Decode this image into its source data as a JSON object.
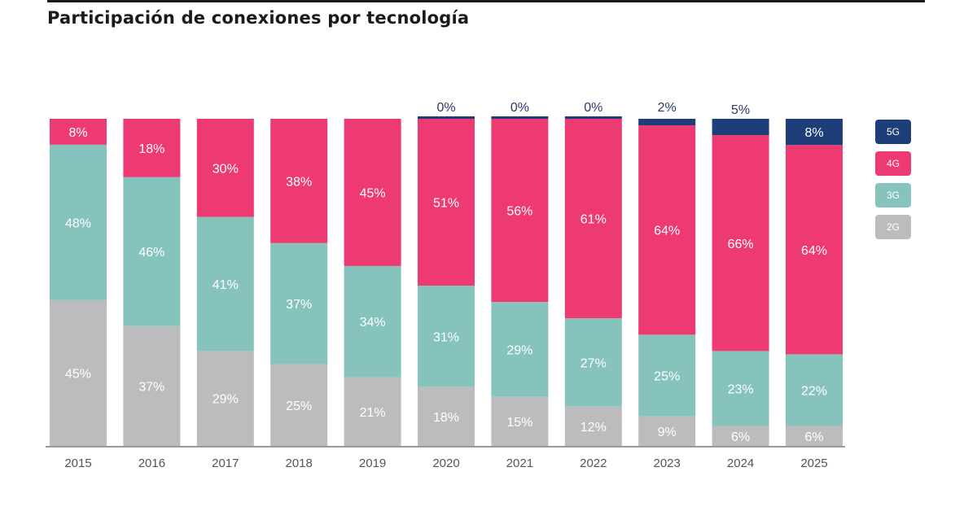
{
  "title": "Participación de conexiones por tecnología",
  "colors": {
    "5G": "#1d3e78",
    "4G": "#ee3a72",
    "3G": "#86c3bd",
    "2G": "#bcbcbe"
  },
  "chart_data": {
    "type": "bar",
    "stacked": true,
    "title": "Participación de conexiones por tecnología",
    "xlabel": "",
    "ylabel": "",
    "ylim": [
      0,
      100
    ],
    "legend_position": "right",
    "grid": false,
    "categories": [
      "2015",
      "2016",
      "2017",
      "2018",
      "2019",
      "2020",
      "2021",
      "2022",
      "2023",
      "2024",
      "2025"
    ],
    "series": [
      {
        "name": "2G",
        "values": [
          45,
          37,
          29,
          25,
          21,
          18,
          15,
          12,
          9,
          6,
          6
        ],
        "labels": [
          "45%",
          "37%",
          "29%",
          "25%",
          "21%",
          "18%",
          "15%",
          "12%",
          "9%",
          "6%",
          "6%"
        ]
      },
      {
        "name": "3G",
        "values": [
          48,
          46,
          41,
          37,
          34,
          31,
          29,
          27,
          25,
          23,
          22
        ],
        "labels": [
          "48%",
          "46%",
          "41%",
          "37%",
          "34%",
          "31%",
          "29%",
          "27%",
          "25%",
          "23%",
          "22%"
        ]
      },
      {
        "name": "4G",
        "values": [
          8,
          18,
          30,
          38,
          45,
          51,
          56,
          61,
          64,
          66,
          64
        ],
        "labels": [
          "8%",
          "18%",
          "30%",
          "38%",
          "45%",
          "51%",
          "56%",
          "61%",
          "64%",
          "66%",
          "64%"
        ]
      },
      {
        "name": "5G",
        "values": [
          null,
          null,
          null,
          null,
          null,
          0,
          0,
          0,
          2,
          5,
          8
        ],
        "labels": [
          null,
          null,
          null,
          null,
          null,
          "0%",
          "0%",
          "0%",
          "2%",
          "5%",
          "8%"
        ]
      }
    ],
    "legend": [
      "5G",
      "4G",
      "3G",
      "2G"
    ]
  }
}
